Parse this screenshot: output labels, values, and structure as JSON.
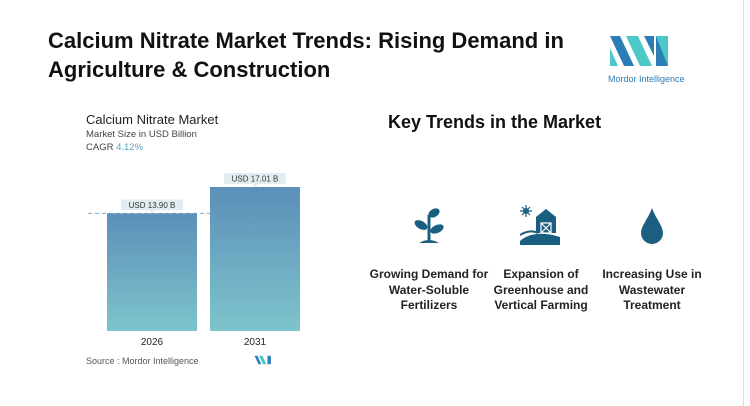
{
  "header": {
    "title": "Calcium Nitrate Market Trends: Rising Demand in Agriculture & Construction",
    "logo_text": "Mordor Intelligence"
  },
  "chart_data": {
    "type": "bar",
    "title": "Calcium Nitrate Market",
    "subtitle": "Market Size in USD Billion",
    "cagr_label": "CAGR",
    "cagr_value": "4.12%",
    "categories": [
      "2026",
      "2031"
    ],
    "values": [
      13.9,
      17.01
    ],
    "data_labels": [
      "USD 13.90 B",
      "USD 17.01 B"
    ],
    "ylim": [
      0,
      17.01
    ],
    "grid": false,
    "colors": {
      "bar_top": "#5b8fb8",
      "bar_bottom": "#7ec4cc",
      "label_bg": "#e3ecf0",
      "dashed": "#7fb3cf"
    },
    "source": "Source :  Mordor Intelligence"
  },
  "trends": {
    "heading": "Key Trends in the Market",
    "icon_color": "#1a5f80",
    "items": [
      {
        "icon": "plant-icon",
        "label": "Growing Demand for Water-Soluble Fertilizers"
      },
      {
        "icon": "barn-farm-icon",
        "label": "Expansion of Greenhouse and Vertical Farming"
      },
      {
        "icon": "water-drop-icon",
        "label": "Increasing Use in Wastewater Treatment"
      }
    ]
  }
}
